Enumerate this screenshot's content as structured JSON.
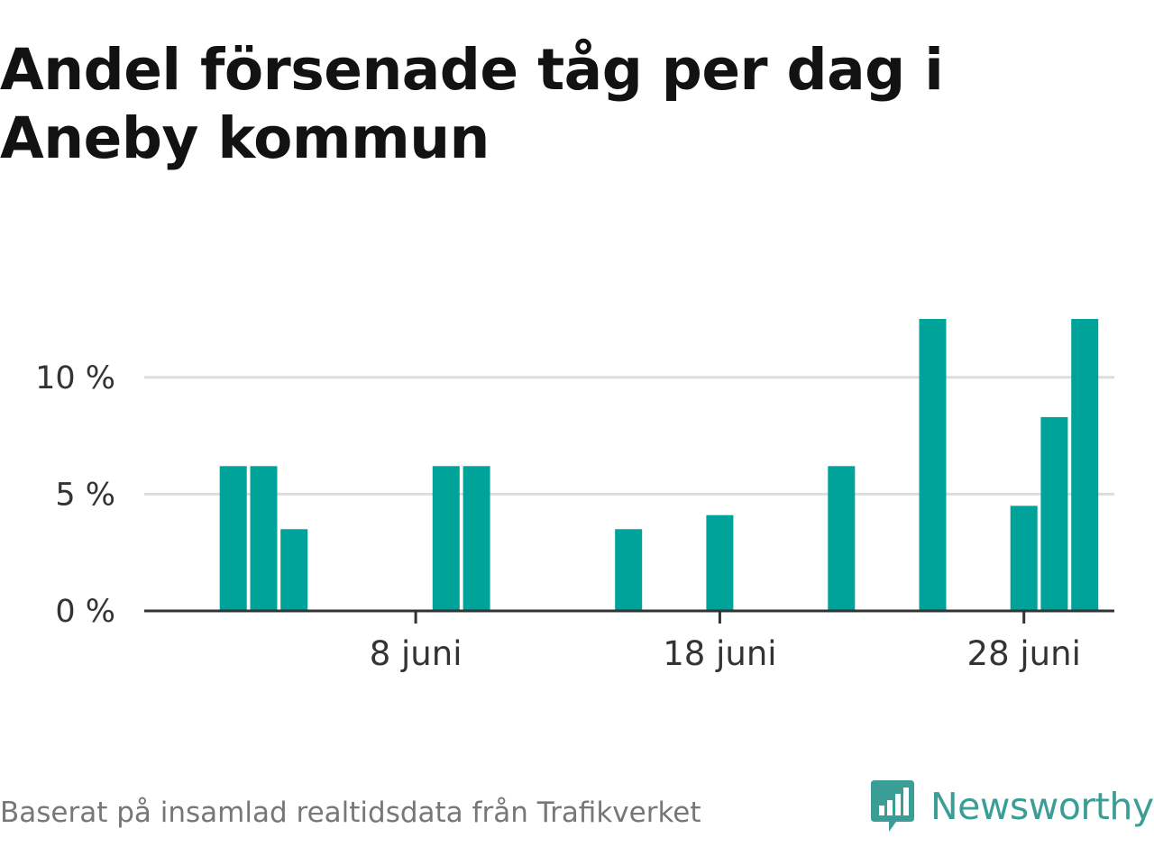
{
  "title": "Andel försenade tåg per dag i Aneby kommun",
  "source": "Baserat på insamlad realtidsdata från Trafikverket",
  "brand": {
    "name": "Newsworthy",
    "icon": "newsworthy-logo-icon",
    "color": "#3a9e96"
  },
  "colors": {
    "bar": "#00a39a",
    "grid": "#dddddd",
    "axis": "#333333"
  },
  "chart_data": {
    "type": "bar",
    "x_start": "2023-06-01",
    "x_end": "2023-06-30",
    "x": [
      "2023-06-02",
      "2023-06-03",
      "2023-06-04",
      "2023-06-09",
      "2023-06-10",
      "2023-06-15",
      "2023-06-18",
      "2023-06-22",
      "2023-06-25",
      "2023-06-28",
      "2023-06-29",
      "2023-06-30"
    ],
    "values": [
      6.2,
      6.2,
      3.5,
      6.2,
      6.2,
      3.5,
      4.1,
      6.2,
      12.5,
      4.5,
      8.3,
      12.5
    ],
    "unit": "%",
    "ylim": [
      0,
      12.5
    ],
    "yticks": [
      0,
      5,
      10
    ],
    "ytick_labels": [
      "0 %",
      "5 %",
      "10 %"
    ],
    "xticks": [
      {
        "date": "2023-06-08",
        "label": "8 juni"
      },
      {
        "date": "2023-06-18",
        "label": "18 juni"
      },
      {
        "date": "2023-06-28",
        "label": "28 juni"
      }
    ],
    "grid": true,
    "title": "Andel försenade tåg per dag i Aneby kommun",
    "xlabel": "",
    "ylabel": ""
  }
}
